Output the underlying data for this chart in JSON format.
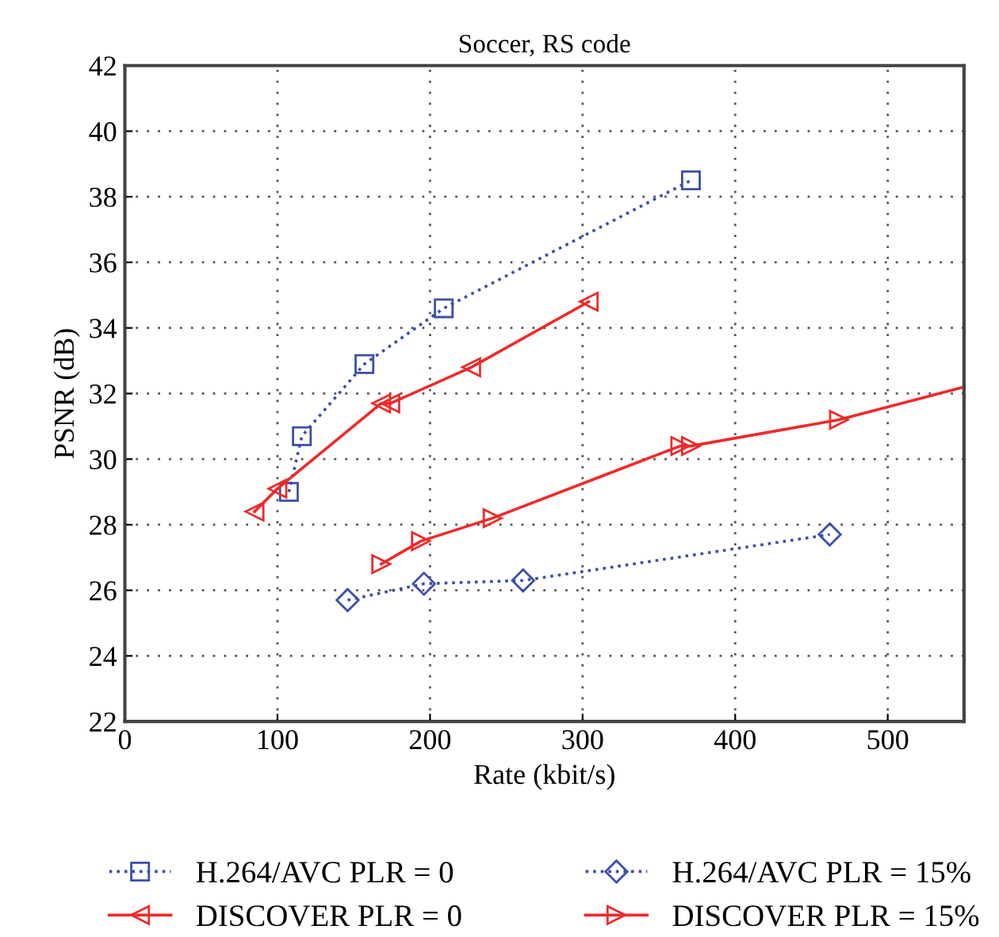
{
  "chart_data": {
    "type": "line",
    "title": "Soccer, RS code",
    "xlabel": "Rate (kbit/s)",
    "ylabel": "PSNR (dB)",
    "xlim": [
      0,
      550
    ],
    "xticks": [
      0,
      100,
      200,
      300,
      400,
      500
    ],
    "ylim": [
      22,
      42
    ],
    "yticks": [
      22,
      24,
      26,
      28,
      30,
      32,
      34,
      36,
      38,
      40,
      42
    ],
    "grid": true,
    "legend": "bottom",
    "series": [
      {
        "name": "H.264/AVC PLR = 0",
        "color": "#3a4fa8",
        "marker": "square",
        "line_style": "dotted",
        "x": [
          107.5,
          116,
          157,
          209,
          371
        ],
        "values": [
          29.0,
          30.7,
          32.9,
          34.6,
          38.5
        ]
      },
      {
        "name": "H.264/AVC PLR = 15%",
        "color": "#3a4fa8",
        "marker": "diamond",
        "line_style": "dotted",
        "x": [
          146,
          196,
          261,
          462
        ],
        "values": [
          25.7,
          26.2,
          26.3,
          27.7
        ]
      },
      {
        "name": "DISCOVER PLR = 0",
        "color": "#ee2a2a",
        "marker": "triangle_left",
        "line_style": "solid",
        "x": [
          85,
          100,
          168,
          174,
          227,
          304
        ],
        "values": [
          28.4,
          29.1,
          31.7,
          31.7,
          32.8,
          34.8
        ]
      },
      {
        "name": "DISCOVER PLR = 15%",
        "color": "#ee2a2a",
        "marker": "triangle_right",
        "line_style": "solid",
        "x": [
          168,
          194,
          241,
          364,
          371,
          468,
          550
        ],
        "values": [
          26.8,
          27.5,
          28.2,
          30.4,
          30.4,
          31.2,
          32.2
        ]
      }
    ]
  }
}
